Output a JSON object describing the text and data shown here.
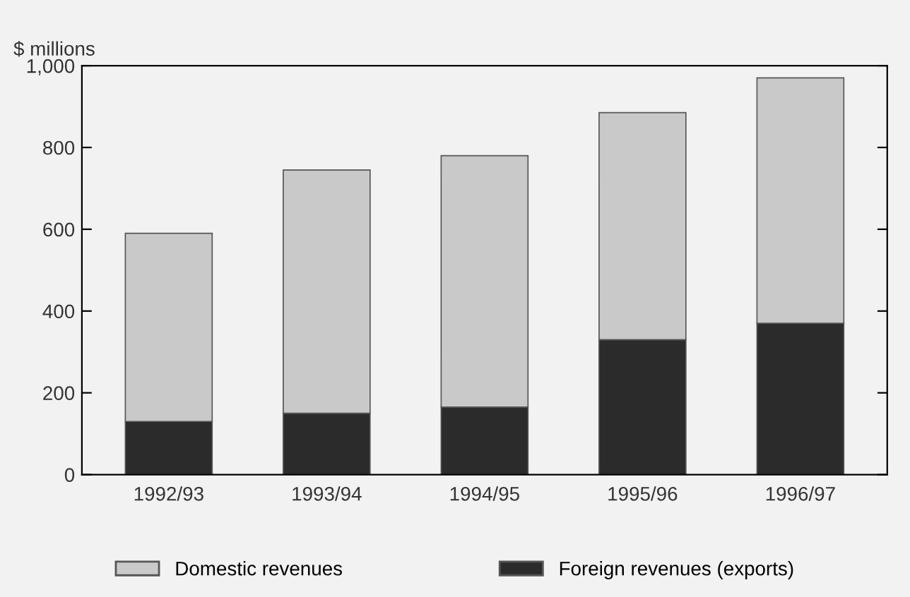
{
  "chart_data": {
    "type": "bar",
    "ylabel": "$ millions",
    "categories": [
      "1992/93",
      "1993/94",
      "1994/95",
      "1995/96",
      "1996/97"
    ],
    "stacked": true,
    "series": [
      {
        "name": "Foreign revenues (exports)",
        "color": "#2b2b2b",
        "values": [
          130,
          150,
          165,
          330,
          370
        ]
      },
      {
        "name": "Domestic revenues",
        "color": "#c9c9c9",
        "values": [
          460,
          595,
          615,
          555,
          600
        ]
      }
    ],
    "ylim": [
      0,
      1000
    ],
    "yticks": [
      0,
      200,
      400,
      600,
      800,
      {
        "value": 1000,
        "label": "1,000"
      }
    ],
    "grid": false,
    "legend": "bottom"
  }
}
